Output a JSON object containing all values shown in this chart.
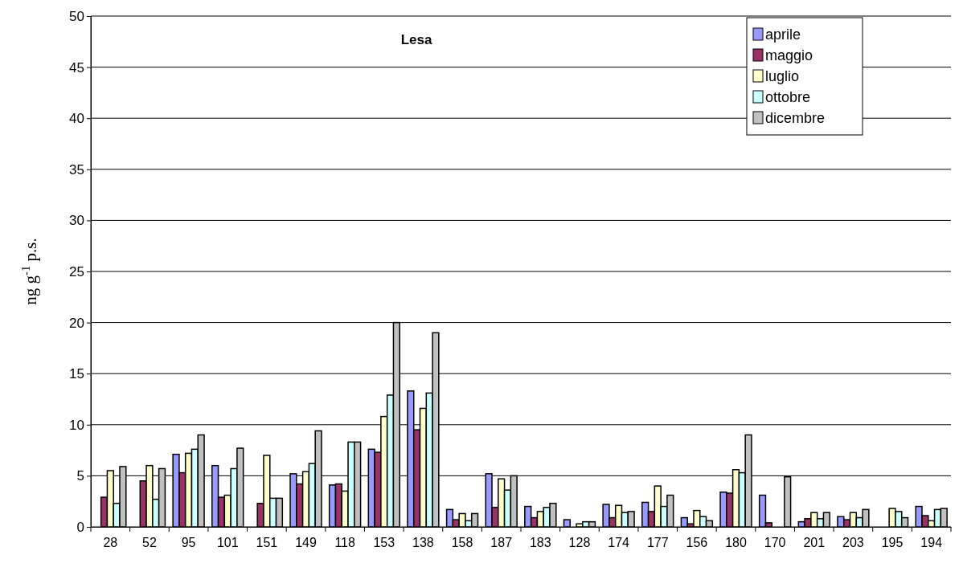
{
  "chart_data": {
    "type": "bar",
    "title": "Lesa",
    "ylabel": "ng g$^{-1}$ p.s.",
    "categories": [
      "28",
      "52",
      "95",
      "101",
      "151",
      "149",
      "118",
      "153",
      "138",
      "158",
      "187",
      "183",
      "128",
      "174",
      "177",
      "156",
      "180",
      "170",
      "201",
      "203",
      "195",
      "194"
    ],
    "series": [
      {
        "name": "aprile",
        "color": "#9999ff",
        "values": [
          null,
          null,
          7.1,
          6.0,
          null,
          5.2,
          4.1,
          7.6,
          13.3,
          1.7,
          5.2,
          2.0,
          0.7,
          2.2,
          2.4,
          0.9,
          3.4,
          3.1,
          0.5,
          1.0,
          null,
          2.0
        ]
      },
      {
        "name": "maggio",
        "color": "#993366",
        "values": [
          2.9,
          4.5,
          5.3,
          2.9,
          2.3,
          4.2,
          4.2,
          7.3,
          9.5,
          0.7,
          1.9,
          0.9,
          null,
          0.9,
          1.5,
          0.3,
          3.3,
          0.4,
          0.8,
          0.7,
          null,
          1.1
        ]
      },
      {
        "name": "luglio",
        "color": "#ffffcc",
        "values": [
          5.5,
          6.0,
          7.2,
          3.1,
          7.0,
          5.4,
          3.5,
          10.8,
          11.6,
          1.3,
          4.7,
          1.5,
          0.3,
          2.1,
          4.0,
          1.6,
          5.6,
          null,
          1.4,
          1.4,
          1.8,
          0.6
        ]
      },
      {
        "name": "ottobre",
        "color": "#ccffff",
        "values": [
          2.3,
          2.7,
          7.6,
          5.7,
          2.8,
          6.2,
          8.3,
          12.9,
          13.1,
          0.6,
          3.6,
          1.9,
          0.5,
          1.4,
          2.0,
          1.0,
          5.3,
          null,
          0.8,
          0.9,
          1.5,
          1.7
        ]
      },
      {
        "name": "dicembre",
        "color": "#c0c0c0",
        "values": [
          5.9,
          5.7,
          9.0,
          7.7,
          2.8,
          9.4,
          8.3,
          20.0,
          19.0,
          1.3,
          5.0,
          2.3,
          0.5,
          1.5,
          3.1,
          0.6,
          9.0,
          4.9,
          1.4,
          1.7,
          0.9,
          1.8
        ]
      }
    ],
    "ylim": [
      0,
      50
    ],
    "yticks": [
      0,
      5,
      10,
      15,
      20,
      25,
      30,
      35,
      40,
      45,
      50
    ],
    "grid": "y",
    "legend": "top right"
  }
}
